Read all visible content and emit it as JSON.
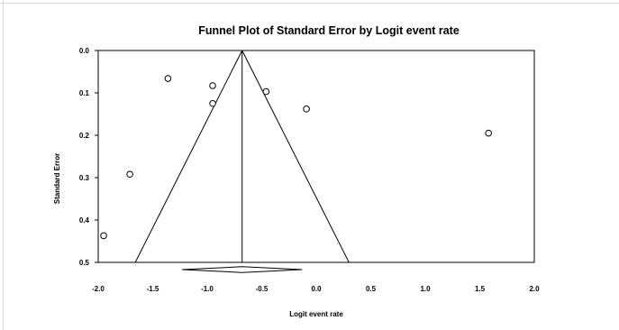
{
  "chart_data": {
    "type": "scatter",
    "title": "Funnel Plot of Standard Error by Logit event rate",
    "xlabel": "Logit event rate",
    "ylabel": "Standard Error",
    "xlim": [
      -2.0,
      2.0
    ],
    "ylim": [
      0.0,
      0.5
    ],
    "y_reversed": true,
    "x_ticks": [
      "-2.0",
      "-1.5",
      "-1.0",
      "-0.5",
      "0.0",
      "0.5",
      "1.0",
      "1.5",
      "2.0"
    ],
    "x_tick_values": [
      -2.0,
      -1.5,
      -1.0,
      -0.5,
      0.0,
      0.5,
      1.0,
      1.5,
      2.0
    ],
    "y_ticks": [
      "0.0",
      "0.1",
      "0.2",
      "0.3",
      "0.4",
      "0.5"
    ],
    "y_tick_values": [
      0.0,
      0.1,
      0.2,
      0.3,
      0.4,
      0.5
    ],
    "grid": false,
    "points": [
      {
        "x": -1.36,
        "y": 0.066
      },
      {
        "x": -0.95,
        "y": 0.083
      },
      {
        "x": -0.95,
        "y": 0.125
      },
      {
        "x": -0.46,
        "y": 0.097
      },
      {
        "x": -0.09,
        "y": 0.138
      },
      {
        "x": 1.58,
        "y": 0.195
      },
      {
        "x": -1.71,
        "y": 0.292
      },
      {
        "x": -1.95,
        "y": 0.437
      }
    ],
    "funnel": {
      "center": -0.68,
      "multiplier": 1.96
    },
    "summary_diamond": {
      "estimate": -0.68,
      "lower": -1.23,
      "upper": -0.13,
      "y": 0.517
    }
  }
}
